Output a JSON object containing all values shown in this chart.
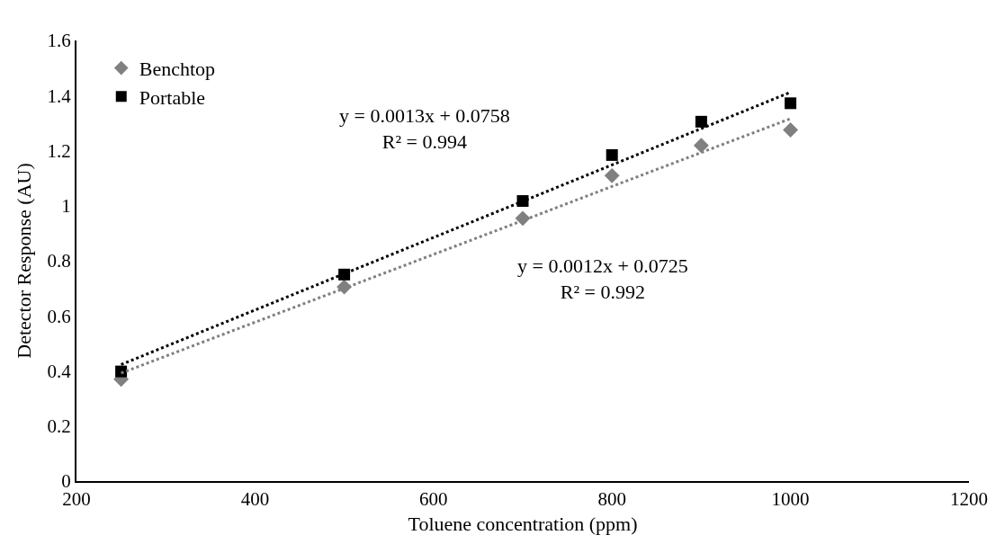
{
  "chart_data": {
    "type": "scatter",
    "xlabel": "Toluene concentration (ppm)",
    "ylabel": "Detector Response (AU)",
    "x": [
      250,
      500,
      700,
      800,
      900,
      1000
    ],
    "series": [
      {
        "name": "Benchtop",
        "color": "#808080",
        "marker": "diamond",
        "values": [
          0.37,
          0.705,
          0.954,
          1.109,
          1.219,
          1.275
        ]
      },
      {
        "name": "Portable",
        "color": "#000000",
        "marker": "square",
        "values": [
          0.398,
          0.75,
          1.017,
          1.184,
          1.305,
          1.372
        ]
      },
      {
        "type": "line",
        "color": "#808080",
        "line_style": "dotted",
        "marker": "none",
        "values": [
          0.392,
          0.7,
          0.946,
          1.07,
          1.193,
          1.316
        ]
      },
      {
        "type": "line",
        "color": "#000000",
        "line_style": "dotted",
        "marker": "none",
        "values": [
          0.423,
          0.753,
          1.016,
          1.148,
          1.28,
          1.412
        ]
      }
    ],
    "annotations": [
      "y = 0.0013x + 0.0758\nR² = 0.994",
      "y = 0.0012x + 0.0725\nR² = 0.992"
    ],
    "xlim": [
      200,
      1200
    ],
    "xticks": [
      200,
      400,
      600,
      800,
      1000,
      1200
    ],
    "ylim": [
      0,
      1.6
    ],
    "yticks": [
      0,
      0.2,
      0.4,
      0.6,
      0.8,
      1,
      1.2,
      1.4,
      1.6
    ],
    "grid": false,
    "legend": "top left"
  }
}
